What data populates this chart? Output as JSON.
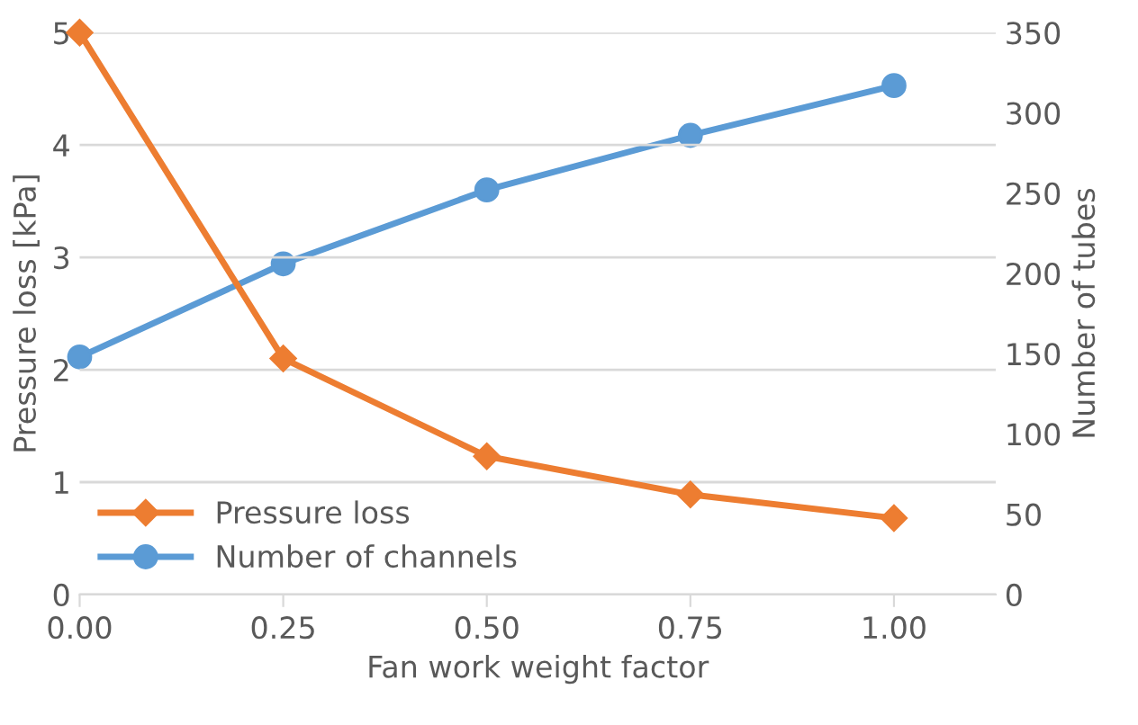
{
  "chart_data": {
    "type": "line",
    "x": [
      0,
      0.25,
      0.5,
      0.75,
      1.0
    ],
    "xlabel": "Fan work weight factor",
    "ylabel": "Pressure loss [kPa]",
    "y2label": "Number of tubes",
    "series": [
      {
        "name": "Pressure loss",
        "color": "#ed7d31",
        "marker": "diamond",
        "values": [
          5.0,
          2.1,
          1.23,
          0.89,
          0.68
        ]
      },
      {
        "name": "Number of channels",
        "color": "#5b9bd5",
        "marker": "circle",
        "axis": "y2",
        "values": [
          148,
          206,
          252,
          286,
          317
        ]
      }
    ],
    "xlim": [
      0,
      1.125
    ],
    "xticks": [
      {
        "value": 0,
        "label": "0.00"
      },
      {
        "value": 0.25,
        "label": "0.25"
      },
      {
        "value": 0.5,
        "label": "0.50"
      },
      {
        "value": 0.75,
        "label": "0.75"
      },
      {
        "value": 1.0,
        "label": "1.00"
      }
    ],
    "ylim": [
      0,
      5
    ],
    "yticks": [
      0,
      1,
      2,
      3,
      4,
      5
    ],
    "y2lim": [
      0,
      350
    ],
    "y2ticks": [
      0,
      50,
      100,
      150,
      200,
      250,
      300,
      350
    ],
    "grid": "y",
    "legend": "bottom left",
    "line_style": "solid"
  }
}
